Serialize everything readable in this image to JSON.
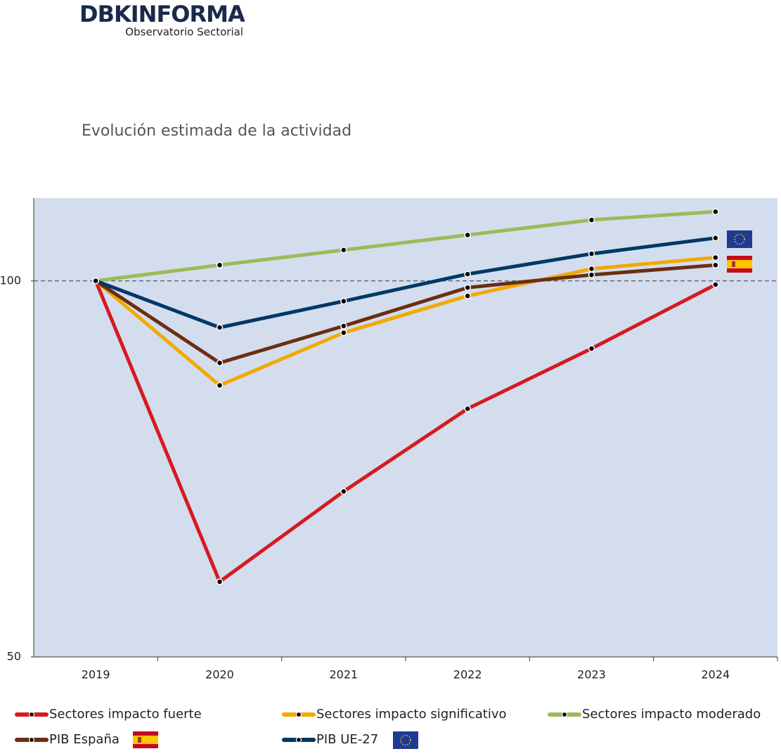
{
  "header": {
    "logo": "DBKINFORMA",
    "tagline": "Observatorio Sectorial"
  },
  "chart_data": {
    "type": "line",
    "title": "Evolución estimada de la actividad",
    "categories": [
      "2019",
      "2020",
      "2021",
      "2022",
      "2023",
      "2024"
    ],
    "series": [
      {
        "name": "Sectores impacto fuerte",
        "color": "#d71920",
        "values": [
          100,
          60,
          72,
          83,
          91,
          99.5
        ]
      },
      {
        "name": "Sectores impacto significativo",
        "color": "#f2a900",
        "values": [
          100,
          86.1,
          93.1,
          98,
          101.6,
          103.1
        ]
      },
      {
        "name": "Sectores impacto moderado",
        "color": "#9bbb59",
        "values": [
          100,
          102.1,
          104.1,
          106.1,
          108.1,
          109.2
        ]
      },
      {
        "name": "PIB España",
        "color": "#6b2e12",
        "values": [
          100,
          89.1,
          94,
          99.1,
          100.8,
          102.1
        ]
      },
      {
        "name": "PIB UE-27",
        "color": "#003865",
        "values": [
          100,
          93.8,
          97.3,
          100.9,
          103.6,
          105.7
        ]
      }
    ],
    "ylim": [
      50,
      111
    ],
    "yticks": [
      50,
      100
    ],
    "reference_line": 100,
    "background": "#d3ddee"
  }
}
